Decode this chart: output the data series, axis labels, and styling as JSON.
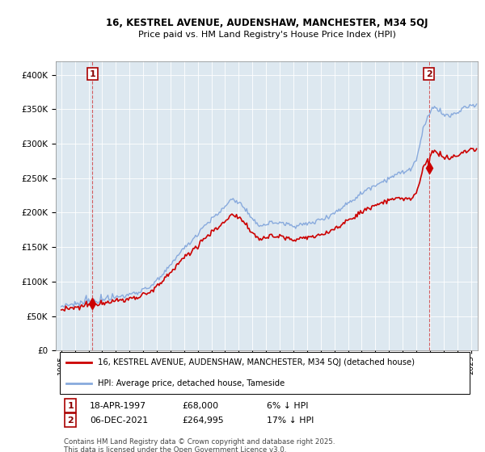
{
  "title_line1": "16, KESTREL AVENUE, AUDENSHAW, MANCHESTER, M34 5QJ",
  "title_line2": "Price paid vs. HM Land Registry's House Price Index (HPI)",
  "legend_label_red": "16, KESTREL AVENUE, AUDENSHAW, MANCHESTER, M34 5QJ (detached house)",
  "legend_label_blue": "HPI: Average price, detached house, Tameside",
  "annotation1_date": "18-APR-1997",
  "annotation1_price": "£68,000",
  "annotation1_pct": "6% ↓ HPI",
  "annotation2_date": "06-DEC-2021",
  "annotation2_price": "£264,995",
  "annotation2_pct": "17% ↓ HPI",
  "copyright_text": "Contains HM Land Registry data © Crown copyright and database right 2025.\nThis data is licensed under the Open Government Licence v3.0.",
  "red_color": "#cc0000",
  "blue_color": "#88aadd",
  "plot_bg_color": "#dde8f0",
  "sale1_year": 1997.29,
  "sale1_price": 68000,
  "sale2_year": 2021.92,
  "sale2_price": 264995,
  "ylim_max": 420000,
  "ylim_min": 0,
  "xmin": 1994.6,
  "xmax": 2025.5
}
